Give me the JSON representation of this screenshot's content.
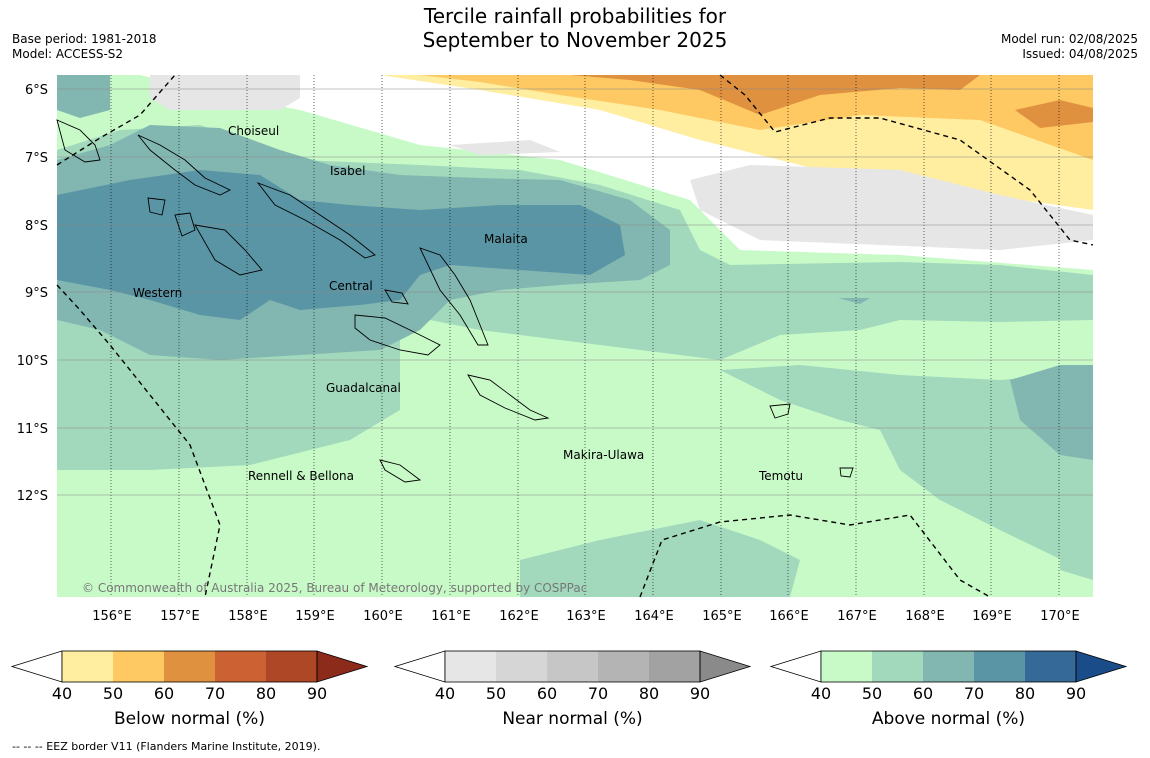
{
  "title": {
    "line1": "Tercile rainfall probabilities for",
    "line2": "September to November 2025"
  },
  "meta": {
    "base_period": "Base period: 1981-2018",
    "model": "Model: ACCESS-S2",
    "model_run": "Model run: 02/08/2025",
    "issued": "Issued: 04/08/2025"
  },
  "map": {
    "lat_labels": [
      "6°S",
      "7°S",
      "8°S",
      "9°S",
      "10°S",
      "11°S",
      "12°S"
    ],
    "lon_labels": [
      "156°E",
      "157°E",
      "158°E",
      "159°E",
      "160°E",
      "161°E",
      "162°E",
      "163°E",
      "164°E",
      "165°E",
      "166°E",
      "167°E",
      "168°E",
      "169°E",
      "170°E"
    ],
    "province_labels": [
      "Choiseul",
      "Isabel",
      "Malaita",
      "Western",
      "Central",
      "Guadalcanal",
      "Makira-Ulawa",
      "Rennell & Bellona",
      "Temotu"
    ],
    "copyright": "© Commonwealth of Australia 2025, Bureau of Meteorology, supported by COSPPac"
  },
  "colorbars": [
    {
      "label": "Below normal (%)",
      "ticks": [
        "40",
        "50",
        "60",
        "70",
        "80",
        "90"
      ],
      "colors": [
        "#ffeda0",
        "#fec962",
        "#e09140",
        "#cc6133",
        "#ad4726",
        "#8c2b1a"
      ]
    },
    {
      "label": "Near normal (%)",
      "ticks": [
        "40",
        "50",
        "60",
        "70",
        "80",
        "90"
      ],
      "colors": [
        "#e6e6e6",
        "#d6d6d6",
        "#c6c6c6",
        "#b4b4b4",
        "#a2a2a2",
        "#8a8a8a"
      ]
    },
    {
      "label": "Above normal (%)",
      "ticks": [
        "40",
        "50",
        "60",
        "70",
        "80",
        "90"
      ],
      "colors": [
        "#c8fac8",
        "#a2d9bc",
        "#82b7b1",
        "#5a95a5",
        "#346998",
        "#1a4c8a"
      ]
    }
  ],
  "footnote": "-- -- -- EEZ border V11 (Flanders Marine Institute, 2019)."
}
